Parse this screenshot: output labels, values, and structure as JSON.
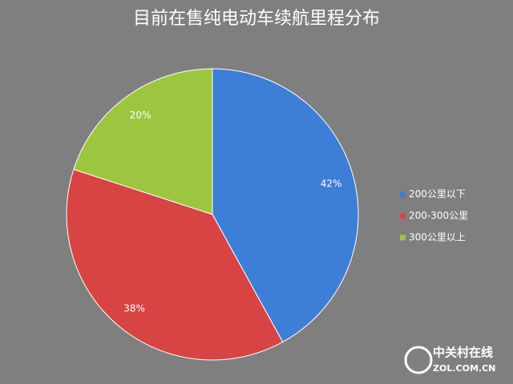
{
  "chart_data": {
    "type": "pie",
    "title": "目前在售纯电动车续航里程分布",
    "categories": [
      "200公里以下",
      "200-300公里",
      "300公里以上"
    ],
    "values": [
      42,
      38,
      20
    ],
    "value_labels": [
      "42%",
      "38%",
      "20%"
    ],
    "colors": [
      "#3d7ed6",
      "#d84343",
      "#9cc640"
    ],
    "legend": "right"
  },
  "watermark": {
    "name": "中关村在线",
    "site": "ZOL.COM.CN"
  }
}
